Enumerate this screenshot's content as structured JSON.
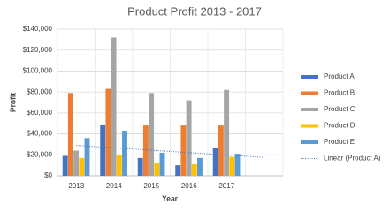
{
  "chart_data": {
    "type": "bar",
    "title": "Product Profit 2013 - 2017",
    "x_label": "Year",
    "y_label": "Profit",
    "categories": [
      "2013",
      "2014",
      "2015",
      "2016",
      "2017"
    ],
    "series": [
      {
        "name": "Product A",
        "color": "#4472c4",
        "values": [
          19000,
          49000,
          17000,
          10000,
          27000
        ]
      },
      {
        "name": "Product B",
        "color": "#ed7d31",
        "values": [
          79000,
          83000,
          48000,
          48000,
          48000
        ]
      },
      {
        "name": "Product C",
        "color": "#a5a5a5",
        "values": [
          24000,
          132000,
          79000,
          72000,
          82000
        ]
      },
      {
        "name": "Product D",
        "color": "#ffc000",
        "values": [
          17000,
          20000,
          12000,
          11000,
          18000
        ]
      },
      {
        "name": "Product E",
        "color": "#5b9bd5",
        "values": [
          36000,
          43000,
          22000,
          17000,
          21000
        ]
      }
    ],
    "trendline": {
      "name": "Linear  (Product A)",
      "series": 0,
      "color": "#4472c4",
      "forward": 1
    },
    "ylim": [
      0,
      140000
    ],
    "yticks": [
      {
        "value": 0,
        "label": "$0"
      },
      {
        "value": 20000,
        "label": "$20,000"
      },
      {
        "value": 40000,
        "label": "$40,000"
      },
      {
        "value": 60000,
        "label": "$60,000"
      },
      {
        "value": 80000,
        "label": "$80,000"
      },
      {
        "value": 100000,
        "label": "$100,000"
      },
      {
        "value": 120000,
        "label": "$120,000"
      },
      {
        "value": 140000,
        "label": "$140,000"
      }
    ],
    "grid": true,
    "legend": "right"
  }
}
